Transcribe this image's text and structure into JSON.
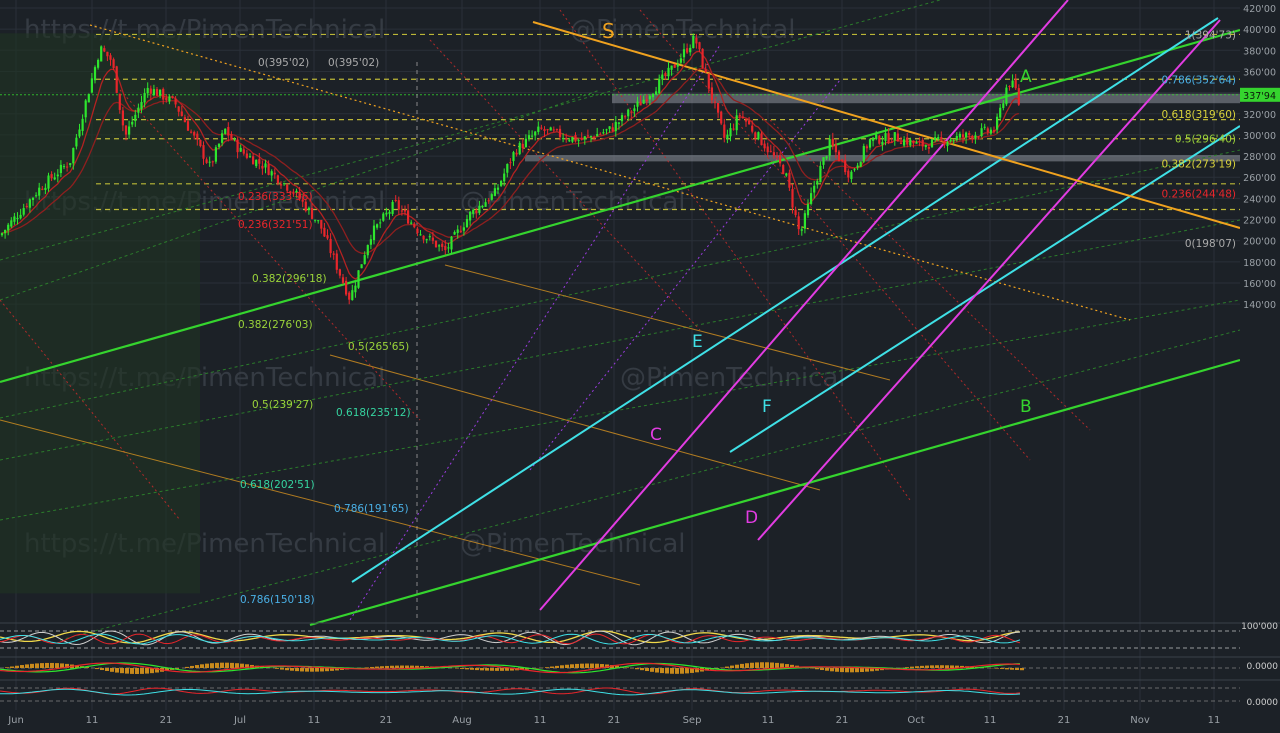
{
  "colors": {
    "background": "#1c2127",
    "grid": "#2a3038",
    "candle_up": "#2ee62e",
    "candle_down": "#e8262b",
    "ma": "#b32222",
    "orange": "#f0a21f",
    "green_line": "#35d42e",
    "cyan_line": "#3fe0e6",
    "magenta_line": "#e23ce2",
    "yellow_dash": "#d8d23a",
    "gray_zone": "#8e949c",
    "price_tag": "#35d42e",
    "watermark": "#3a4048"
  },
  "watermarks": [
    "https://t.me/PimenTechnical",
    "@PimenTechnical",
    "https://t.me/PimenTechnical",
    "@PimenTechnical",
    "https://t.me/PimenTechnical",
    "@PimenTechnical",
    "https://t.me/PimenTechnical",
    "@PimenTechnical",
    "https://t.me/PimenTechnical"
  ],
  "current_price_label": "337'94",
  "chart_data": {
    "type": "candlestick",
    "x_axis": {
      "ticks": [
        "Jun",
        "11",
        "21",
        "Jul",
        "11",
        "21",
        "Aug",
        "11",
        "21",
        "Sep",
        "11",
        "21",
        "Oct",
        "11",
        "21",
        "Nov",
        "11"
      ]
    },
    "y_axis": {
      "range": [
        130,
        425
      ],
      "ticks": [
        "420'00",
        "400'00",
        "380'00",
        "360'00",
        "340'00",
        "320'00",
        "300'00",
        "280'00",
        "260'00",
        "240'00",
        "220'00",
        "200'00",
        "180'00",
        "160'00",
        "140'00"
      ]
    },
    "fib_left": [
      {
        "label": "0(395'02)"
      },
      {
        "label": "0.236(333'96)"
      },
      {
        "label": "0.236(321'51)"
      },
      {
        "label": "0.382(296'18)"
      },
      {
        "label": "0.382(276'03)"
      },
      {
        "label": "0.5(265'65)"
      },
      {
        "label": "0.5(239'27)"
      },
      {
        "label": "0.618(235'12)"
      },
      {
        "label": "0.618(202'51)"
      },
      {
        "label": "0.786(191'65)"
      },
      {
        "label": "0.786(150'18)"
      }
    ],
    "fib_right": [
      {
        "label": "1(394'73)",
        "value": 394.73
      },
      {
        "label": "0.786(352'64)",
        "value": 352.64
      },
      {
        "label": "0.618(319'60)",
        "value": 319.6
      },
      {
        "label": "0.5(296'40)",
        "value": 296.4
      },
      {
        "label": "0.382(273'19)",
        "value": 273.19
      },
      {
        "label": "0.236(244'48)",
        "value": 244.48
      },
      {
        "label": "0(198'07)",
        "value": 198.07
      }
    ],
    "channel_labels": [
      "S",
      "A",
      "B",
      "C",
      "D",
      "E",
      "F"
    ],
    "oscillator_axis": [
      {
        "label": "100'000"
      },
      {
        "label": "0.0000"
      },
      {
        "label": "0.0000"
      }
    ]
  }
}
